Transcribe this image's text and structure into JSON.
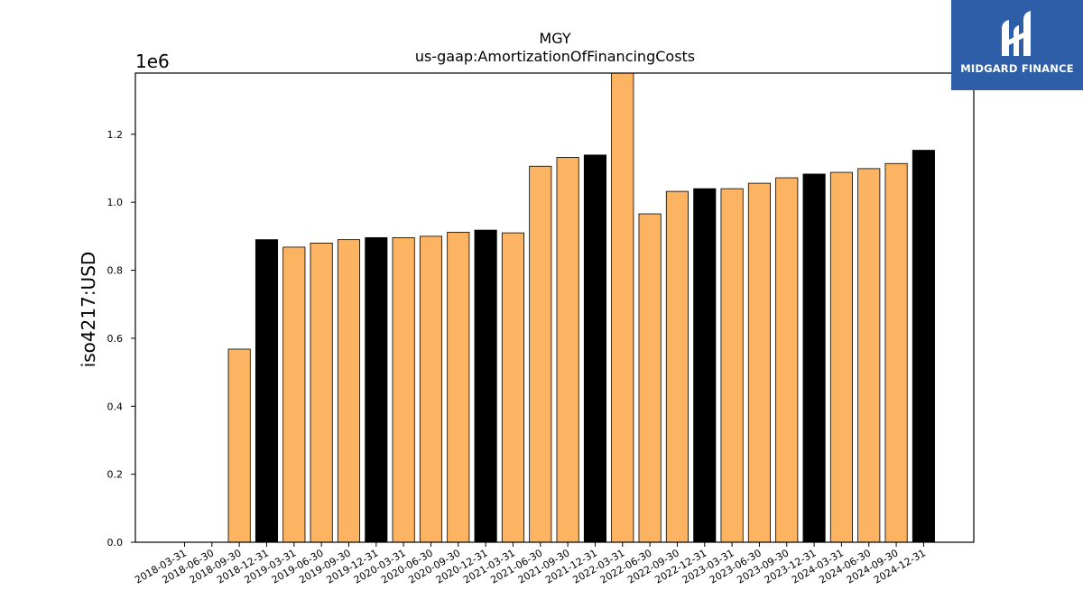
{
  "chart_data": {
    "type": "bar",
    "title": "MGY",
    "subtitle": "us-gaap:AmortizationOfFinancingCosts",
    "ylabel": "iso4217:USD",
    "xlabel": "",
    "y_multiplier_label": "1e6",
    "ylim": [
      0,
      1.38
    ],
    "y_ticks": [
      "0.0",
      "0.2",
      "0.4",
      "0.6",
      "0.8",
      "1.0",
      "1.2"
    ],
    "categories": [
      "2018-03-31",
      "2018-06-30",
      "2018-09-30",
      "2018-12-31",
      "2019-03-31",
      "2019-06-30",
      "2019-09-30",
      "2019-12-31",
      "2020-03-31",
      "2020-06-30",
      "2020-09-30",
      "2020-12-31",
      "2021-03-31",
      "2021-06-30",
      "2021-09-30",
      "2021-12-31",
      "2022-03-31",
      "2022-06-30",
      "2022-09-30",
      "2022-12-31",
      "2023-03-31",
      "2023-06-30",
      "2023-09-30",
      "2023-12-31",
      "2024-03-31",
      "2024-06-30",
      "2024-09-30",
      "2024-12-31"
    ],
    "values": [
      null,
      null,
      0.568,
      0.89,
      0.868,
      0.88,
      0.89,
      0.896,
      0.896,
      0.9,
      0.912,
      0.918,
      0.91,
      1.106,
      1.132,
      1.139,
      1.385,
      0.966,
      1.032,
      1.04,
      1.04,
      1.056,
      1.072,
      1.083,
      1.088,
      1.099,
      1.114,
      1.153
    ],
    "annual": [
      false,
      false,
      false,
      true,
      false,
      false,
      false,
      true,
      false,
      false,
      false,
      true,
      false,
      false,
      false,
      true,
      false,
      false,
      false,
      true,
      false,
      false,
      false,
      true,
      false,
      false,
      false,
      true
    ],
    "colors": {
      "quarterly": "#fdb462",
      "annual": "#000000",
      "edge": "#000000"
    },
    "grid": false,
    "legend": "none"
  },
  "logo": {
    "text": "MIDGARD FINANCE",
    "background": "#2f5ea8"
  }
}
